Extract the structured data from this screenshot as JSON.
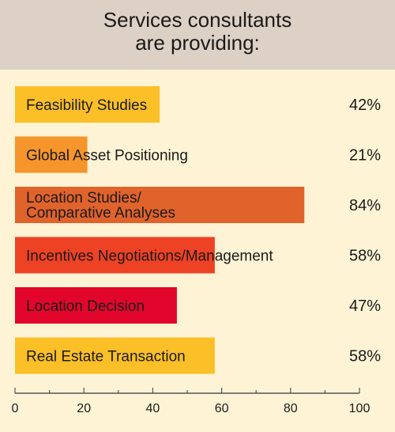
{
  "title": {
    "line1": "Services consultants",
    "line2": "are providing:"
  },
  "chart_data": {
    "type": "bar",
    "orientation": "horizontal",
    "categories": [
      [
        "Feasibility Studies"
      ],
      [
        "Global Asset Positioning"
      ],
      [
        "Location Studies/",
        "Comparative Analyses"
      ],
      [
        "Incentives Negotiations/Management"
      ],
      [
        "Location Decision"
      ],
      [
        "Real Estate Transaction"
      ]
    ],
    "values": [
      42,
      21,
      84,
      58,
      47,
      58
    ],
    "value_labels": [
      "42%",
      "21%",
      "84%",
      "58%",
      "47%",
      "58%"
    ],
    "colors": [
      "#fbbf27",
      "#f5952b",
      "#e0632c",
      "#ee4225",
      "#e2062c",
      "#fbbf27"
    ],
    "xlim": [
      0,
      100
    ],
    "xticks": [
      0,
      20,
      40,
      60,
      80,
      100
    ],
    "grid": false,
    "legend": "none"
  }
}
